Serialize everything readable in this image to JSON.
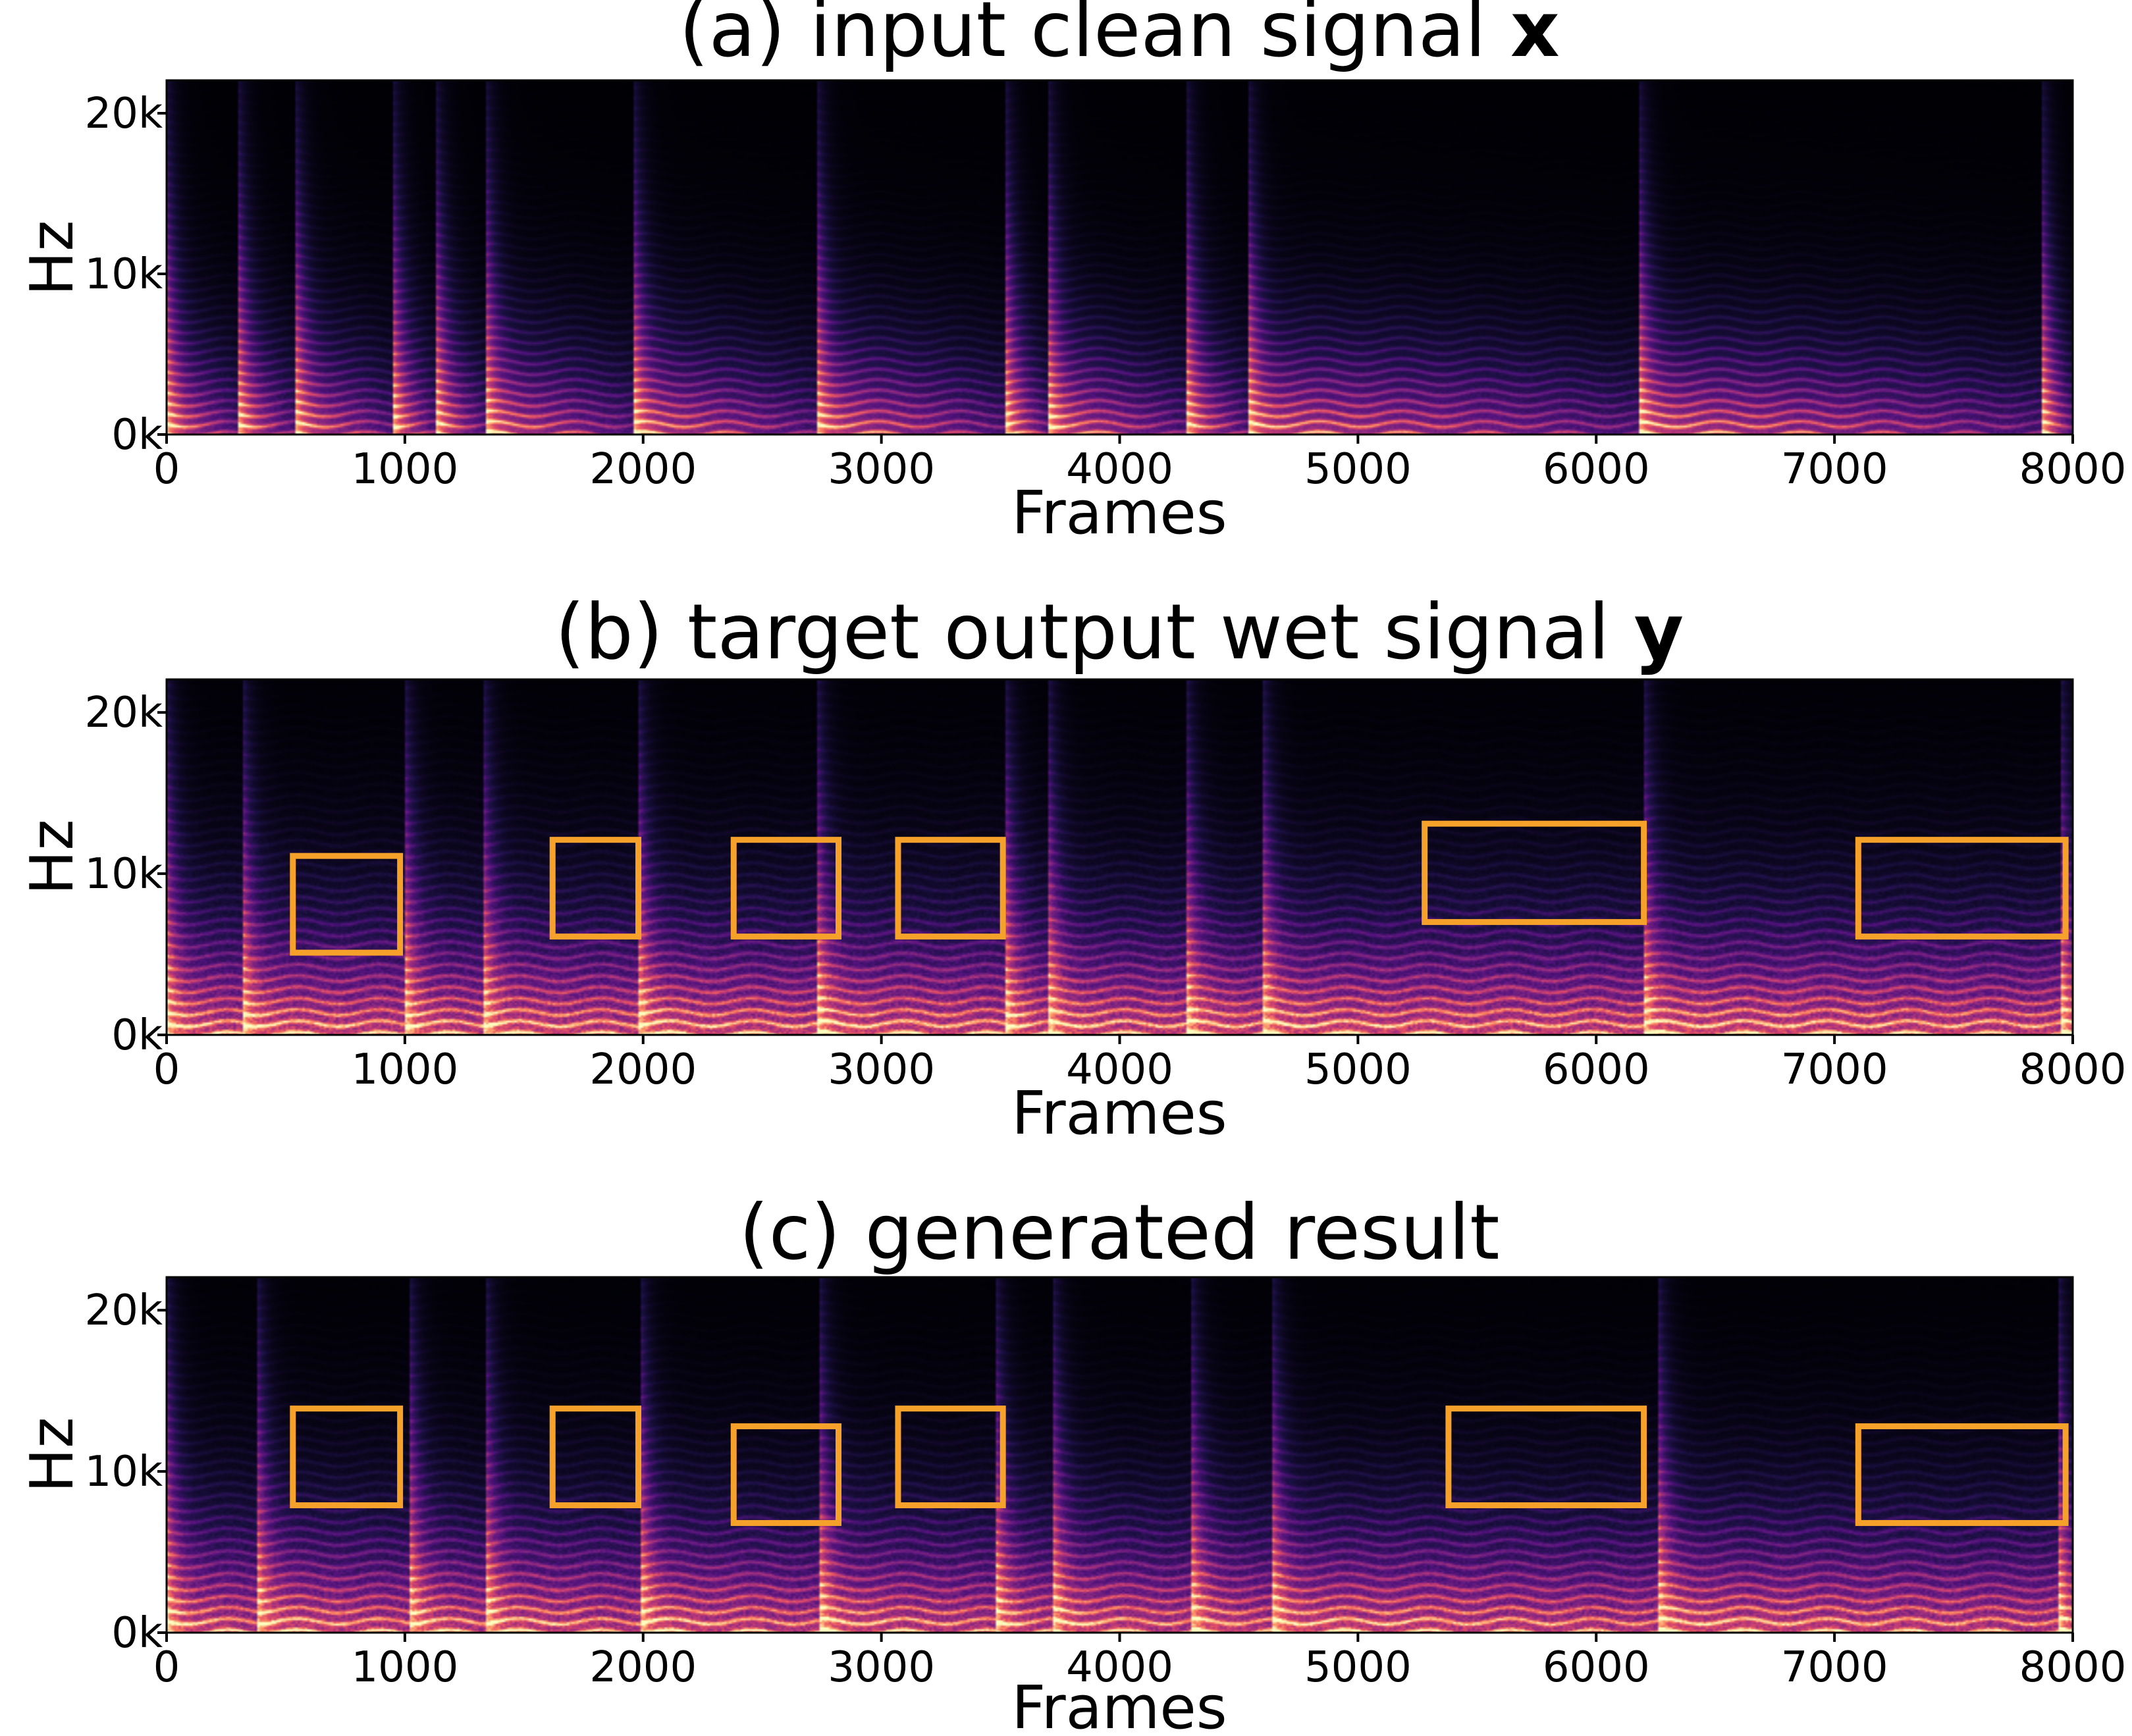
{
  "colors": {
    "background": "#000004",
    "colormap": "magma",
    "box": "#f5a12a",
    "axis": "#000000"
  },
  "chart_data": [
    {
      "type": "heatmap",
      "title": "(a) input clean signal ",
      "title_symbol": "x",
      "xlabel": "Frames",
      "ylabel": "Hz",
      "xlim": [
        0,
        8000
      ],
      "ylim": [
        0,
        22050
      ],
      "xticks": [
        0,
        1000,
        2000,
        3000,
        4000,
        5000,
        6000,
        7000,
        8000
      ],
      "xtick_labels": [
        "0",
        "1000",
        "2000",
        "3000",
        "4000",
        "5000",
        "6000",
        "7000",
        "8000"
      ],
      "yticks": [
        0,
        10000,
        20000
      ],
      "ytick_labels": [
        "0k",
        "10k",
        "20k"
      ],
      "onsets": [
        0,
        300,
        540,
        950,
        1130,
        1340,
        1960,
        2730,
        3520,
        3700,
        4280,
        4540,
        6180,
        7870
      ],
      "segment_decay": 0.6,
      "harmonic_spacing_hz": 650,
      "noise_floor": 0.08,
      "boxes": []
    },
    {
      "type": "heatmap",
      "title": "(b) target output wet signal ",
      "title_symbol": "y",
      "xlabel": "Frames",
      "ylabel": "Hz",
      "xlim": [
        0,
        8000
      ],
      "ylim": [
        0,
        22050
      ],
      "xticks": [
        0,
        1000,
        2000,
        3000,
        4000,
        5000,
        6000,
        7000,
        8000
      ],
      "xtick_labels": [
        "0",
        "1000",
        "2000",
        "3000",
        "4000",
        "5000",
        "6000",
        "7000",
        "8000"
      ],
      "yticks": [
        0,
        10000,
        20000
      ],
      "ytick_labels": [
        "0k",
        "10k",
        "20k"
      ],
      "onsets": [
        0,
        320,
        1000,
        1330,
        1980,
        2730,
        3520,
        3700,
        4280,
        4600,
        6200,
        7950
      ],
      "segment_decay": 0.15,
      "harmonic_spacing_hz": 700,
      "noise_floor": 0.22,
      "boxes": [
        {
          "x0": 530,
          "x1": 980,
          "y0": 5100,
          "y1": 11100
        },
        {
          "x0": 1620,
          "x1": 1980,
          "y0": 6100,
          "y1": 12100
        },
        {
          "x0": 2380,
          "x1": 2820,
          "y0": 6100,
          "y1": 12100
        },
        {
          "x0": 3070,
          "x1": 3510,
          "y0": 6100,
          "y1": 12100
        },
        {
          "x0": 5280,
          "x1": 6200,
          "y0": 7000,
          "y1": 13100
        },
        {
          "x0": 7100,
          "x1": 7970,
          "y0": 6100,
          "y1": 12100
        }
      ]
    },
    {
      "type": "heatmap",
      "title": "(c) generated result",
      "title_symbol": "",
      "xlabel": "Frames",
      "ylabel": "Hz",
      "xlim": [
        0,
        8000
      ],
      "ylim": [
        0,
        22050
      ],
      "xticks": [
        0,
        1000,
        2000,
        3000,
        4000,
        5000,
        6000,
        7000,
        8000
      ],
      "xtick_labels": [
        "0",
        "1000",
        "2000",
        "3000",
        "4000",
        "5000",
        "6000",
        "7000",
        "8000"
      ],
      "yticks": [
        0,
        10000,
        20000
      ],
      "ytick_labels": [
        "0k",
        "10k",
        "20k"
      ],
      "onsets": [
        0,
        380,
        1020,
        1340,
        1990,
        2740,
        3480,
        3720,
        4300,
        4640,
        6260,
        7940
      ],
      "segment_decay": 0.2,
      "harmonic_spacing_hz": 700,
      "noise_floor": 0.2,
      "boxes": [
        {
          "x0": 530,
          "x1": 980,
          "y0": 7900,
          "y1": 13900
        },
        {
          "x0": 1620,
          "x1": 1980,
          "y0": 7900,
          "y1": 13900
        },
        {
          "x0": 2380,
          "x1": 2820,
          "y0": 6800,
          "y1": 12800
        },
        {
          "x0": 3070,
          "x1": 3510,
          "y0": 7900,
          "y1": 13900
        },
        {
          "x0": 5380,
          "x1": 6200,
          "y0": 7900,
          "y1": 13900
        },
        {
          "x0": 7100,
          "x1": 7970,
          "y0": 6800,
          "y1": 12800
        }
      ]
    }
  ]
}
